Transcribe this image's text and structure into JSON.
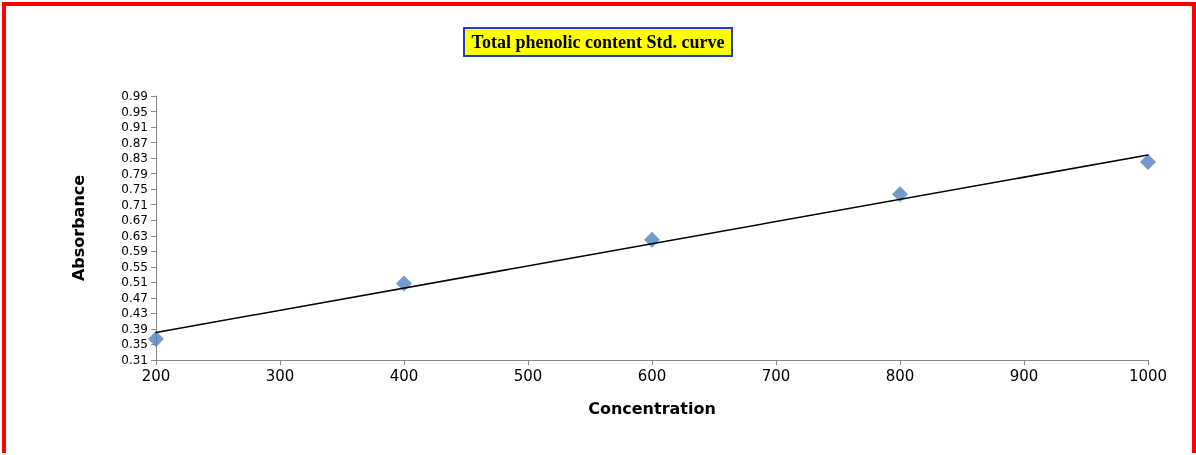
{
  "chart_data": {
    "type": "scatter",
    "title": "Total phenolic content Std. curve",
    "xlabel": "Concentration",
    "ylabel": "Absorbance",
    "x": [
      200,
      400,
      600,
      800,
      1000
    ],
    "series": [
      {
        "color": "#4f81bd",
        "marker": "diamond",
        "values": [
          0.364,
          0.507,
          0.62,
          0.737,
          0.82
        ]
      },
      {
        "type": "line",
        "color": "#000000",
        "marker": "none",
        "line_style": "solid",
        "x": [
          200,
          1000
        ],
        "values": [
          0.381,
          0.838
        ]
      }
    ],
    "xlim": [
      200,
      1000
    ],
    "xticks": [
      200,
      300,
      400,
      500,
      600,
      700,
      800,
      900,
      1000
    ],
    "ylim": [
      0.31,
      0.99
    ],
    "yticks": [
      0.31,
      0.35,
      0.39,
      0.43,
      0.47,
      0.51,
      0.55,
      0.59,
      0.63,
      0.67,
      0.71,
      0.75,
      0.79,
      0.83,
      0.87,
      0.91,
      0.95,
      0.99
    ],
    "grid": false
  }
}
